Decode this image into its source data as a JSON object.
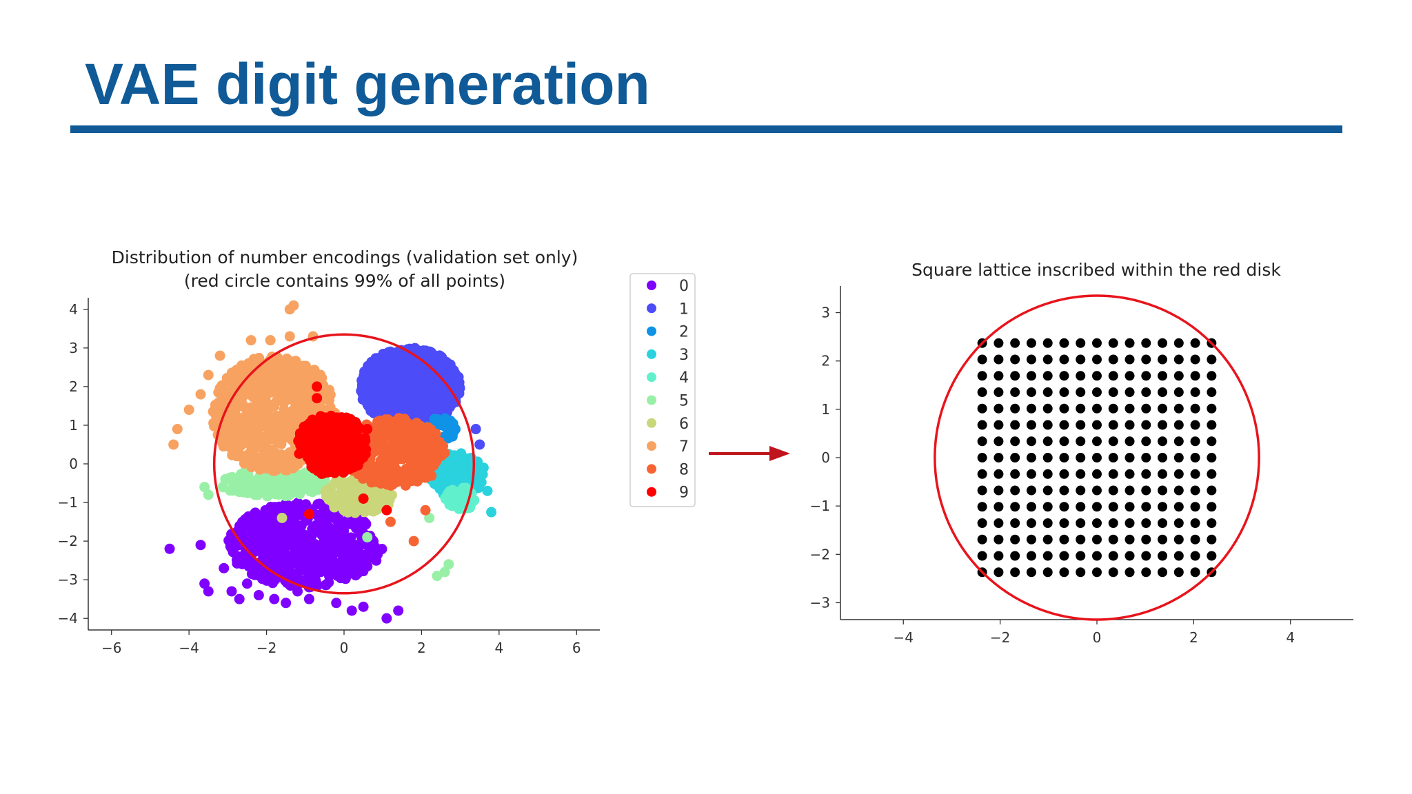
{
  "slide": {
    "title": "VAE digit generation",
    "title_color": "#0f5a97"
  },
  "chart_data": [
    {
      "type": "scatter",
      "title": "Distribution of number encodings (validation set only)",
      "subtitle": "(red circle contains 99% of all points)",
      "xlabel": "",
      "ylabel": "",
      "xlim": [
        -6.6,
        6.6
      ],
      "ylim": [
        -4.3,
        4.3
      ],
      "x_ticks": [
        -6,
        -4,
        -2,
        0,
        2,
        4,
        6
      ],
      "x_tick_labels": [
        "−6",
        "−4",
        "−2",
        "0",
        "2",
        "4",
        "6"
      ],
      "y_ticks": [
        -4,
        -3,
        -2,
        -1,
        0,
        1,
        2,
        3,
        4
      ],
      "y_tick_labels": [
        "−4",
        "−3",
        "−2",
        "−1",
        "0",
        "1",
        "2",
        "3",
        "4"
      ],
      "grid": false,
      "legend_position": "outside-right",
      "circle": {
        "center": [
          0,
          0
        ],
        "radius": 3.35,
        "color": "#e8141c"
      },
      "series": [
        {
          "name": "0",
          "color": "#7f00ff",
          "region": {
            "cx": -1.0,
            "cy": -2.1,
            "rx": 2.0,
            "ry": 1.1
          },
          "x": [
            -4.5,
            -3.7,
            -3.5,
            -3.6,
            -2.9,
            -2.7,
            -2.5,
            -2.2,
            -1.8,
            -1.5,
            -1.2,
            -0.9,
            0.2,
            1.1,
            1.4,
            -0.2,
            -3.1,
            0.5
          ],
          "y": [
            -2.2,
            -2.1,
            -3.3,
            -3.1,
            -3.3,
            -3.5,
            -3.1,
            -3.4,
            -3.5,
            -3.6,
            -3.3,
            -3.5,
            -3.8,
            -4.0,
            -3.8,
            -3.6,
            -2.7,
            -3.7
          ]
        },
        {
          "name": "1",
          "color": "#4c4cf8",
          "region": {
            "cx": 1.7,
            "cy": 2.0,
            "rx": 1.3,
            "ry": 1.0
          },
          "x": [
            3.4,
            3.5
          ],
          "y": [
            0.9,
            0.5
          ]
        },
        {
          "name": "2",
          "color": "#0f93e6",
          "region": {
            "cx": 2.5,
            "cy": 0.9,
            "rx": 0.4,
            "ry": 0.3
          },
          "x": [],
          "y": []
        },
        {
          "name": "3",
          "color": "#2ad2de",
          "region": {
            "cx": 2.9,
            "cy": -0.3,
            "rx": 0.7,
            "ry": 0.6
          },
          "x": [
            3.8,
            3.7,
            3.6
          ],
          "y": [
            -1.25,
            -0.7,
            -0.1
          ]
        },
        {
          "name": "4",
          "color": "#61f0cc",
          "region": {
            "cx": 3.0,
            "cy": -0.9,
            "rx": 0.4,
            "ry": 0.3
          },
          "x": [],
          "y": []
        },
        {
          "name": "5",
          "color": "#98f0a6",
          "region": {
            "cx": -1.8,
            "cy": -0.5,
            "rx": 1.4,
            "ry": 0.35
          },
          "x": [
            2.4,
            2.6,
            2.7,
            -3.6,
            -3.5,
            0.6,
            2.2
          ],
          "y": [
            -2.9,
            -2.8,
            -2.6,
            -0.6,
            -0.8,
            -1.9,
            -1.4
          ]
        },
        {
          "name": "6",
          "color": "#c9d67a",
          "region": {
            "cx": 0.4,
            "cy": -0.8,
            "rx": 0.9,
            "ry": 0.5
          },
          "x": [
            -1.6
          ],
          "y": [
            -1.4
          ]
        },
        {
          "name": "7",
          "color": "#f8a262",
          "region": {
            "cx": -1.8,
            "cy": 1.3,
            "rx": 1.6,
            "ry": 1.5
          },
          "x": [
            -1.4,
            -1.3,
            -3.2,
            -3.5,
            -3.7,
            -4.0,
            -4.3,
            -4.4,
            -3.1,
            -2.4,
            -1.9,
            -1.4,
            -0.8,
            -3.1,
            -2.9
          ],
          "y": [
            4.0,
            4.1,
            2.8,
            2.3,
            1.8,
            1.4,
            0.9,
            0.5,
            1.5,
            3.2,
            3.2,
            3.3,
            3.3,
            0.9,
            0.6
          ]
        },
        {
          "name": "8",
          "color": "#f76434",
          "region": {
            "cx": 1.3,
            "cy": 0.3,
            "rx": 1.3,
            "ry": 0.9
          },
          "x": [
            1.2,
            1.8,
            2.1
          ],
          "y": [
            -1.5,
            -2.0,
            -1.2
          ]
        },
        {
          "name": "9",
          "color": "#ff0000",
          "region": {
            "cx": -0.3,
            "cy": 0.5,
            "rx": 0.9,
            "ry": 0.8
          },
          "x": [
            -0.7,
            -0.7,
            0.5,
            1.1,
            0.6,
            -0.9
          ],
          "y": [
            2.0,
            1.7,
            -0.9,
            -1.2,
            0.9,
            -1.3
          ]
        }
      ]
    },
    {
      "type": "scatter",
      "title": "Square lattice inscribed within the red disk",
      "xlabel": "",
      "ylabel": "",
      "xlim": [
        -5.3,
        5.3
      ],
      "ylim": [
        -3.35,
        3.55
      ],
      "x_ticks": [
        -4,
        -2,
        0,
        2,
        4
      ],
      "x_tick_labels": [
        "−4",
        "−2",
        "0",
        "2",
        "4"
      ],
      "y_ticks": [
        -3,
        -2,
        -1,
        0,
        1,
        2,
        3
      ],
      "y_tick_labels": [
        "−3",
        "−2",
        "−1",
        "0",
        "1",
        "2",
        "3"
      ],
      "grid": false,
      "circle": {
        "center": [
          0,
          0
        ],
        "radius": 3.35,
        "color": "#e8141c"
      },
      "lattice": {
        "min": -2.37,
        "max": 2.37,
        "count": 15,
        "color": "#000000"
      }
    }
  ],
  "arrow": {
    "color": "#c0141c"
  }
}
